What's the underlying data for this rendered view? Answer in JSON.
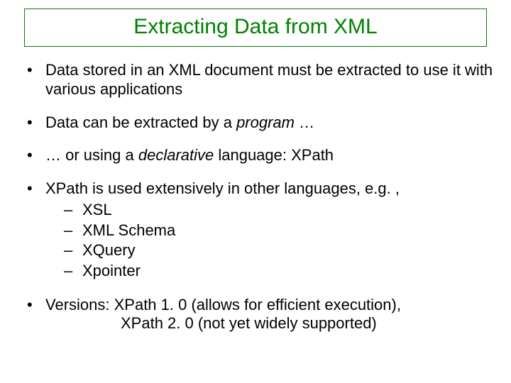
{
  "colors": {
    "title": "#008000",
    "title_border": "#0a7a0a",
    "text": "#000000",
    "background": "#ffffff"
  },
  "typography": {
    "title_fontsize": 30,
    "body_fontsize": 22,
    "font_family": "Arial"
  },
  "title": "Extracting Data from XML",
  "bullets": {
    "b1": "Data stored in an XML document must be extracted to use it with various applications",
    "b2a": "Data can be extracted by a ",
    "b2b": "program",
    "b2c": " …",
    "b3a": "… or using a ",
    "b3b": "declarative",
    "b3c": " language: XPath",
    "b4": "XPath is used extensively in other languages, e.g. ,",
    "b4_sub": {
      "s1": "XSL",
      "s2": "XML Schema",
      "s3": "XQuery",
      "s4": "Xpointer"
    },
    "b5a": "Versions: XPath 1. 0 (allows for efficient execution),",
    "b5b": "XPath 2. 0 (not yet widely supported)"
  }
}
